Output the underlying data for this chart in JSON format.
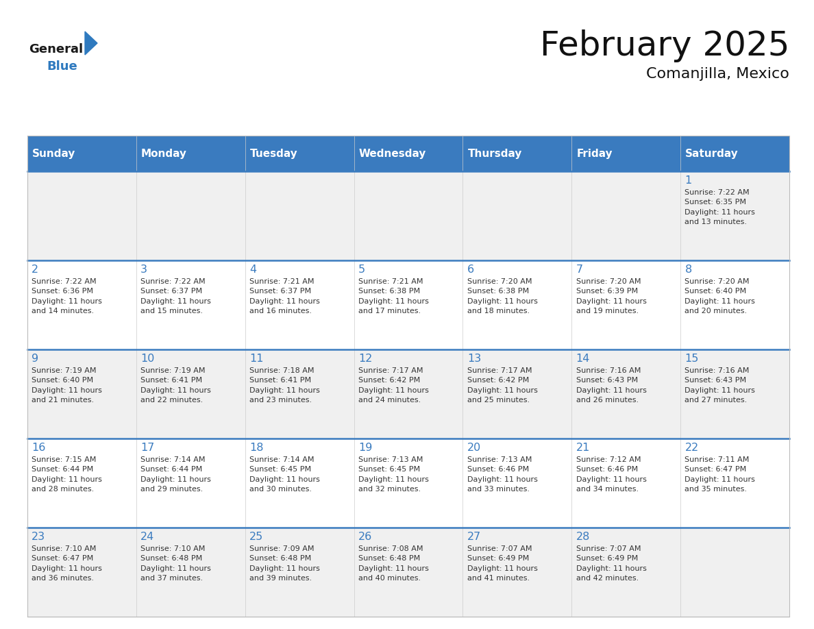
{
  "title": "February 2025",
  "subtitle": "Comanjilla, Mexico",
  "days_of_week": [
    "Sunday",
    "Monday",
    "Tuesday",
    "Wednesday",
    "Thursday",
    "Friday",
    "Saturday"
  ],
  "header_bg": "#3a7bbf",
  "header_text": "#ffffff",
  "cell_bg_even": "#f0f0f0",
  "cell_bg_odd": "#ffffff",
  "divider_color": "#3a7bbf",
  "title_color": "#111111",
  "day_num_color": "#3a7bbf",
  "cell_text_color": "#333333",
  "weeks": [
    [
      {
        "day": null,
        "info": null
      },
      {
        "day": null,
        "info": null
      },
      {
        "day": null,
        "info": null
      },
      {
        "day": null,
        "info": null
      },
      {
        "day": null,
        "info": null
      },
      {
        "day": null,
        "info": null
      },
      {
        "day": 1,
        "info": "Sunrise: 7:22 AM\nSunset: 6:35 PM\nDaylight: 11 hours\nand 13 minutes."
      }
    ],
    [
      {
        "day": 2,
        "info": "Sunrise: 7:22 AM\nSunset: 6:36 PM\nDaylight: 11 hours\nand 14 minutes."
      },
      {
        "day": 3,
        "info": "Sunrise: 7:22 AM\nSunset: 6:37 PM\nDaylight: 11 hours\nand 15 minutes."
      },
      {
        "day": 4,
        "info": "Sunrise: 7:21 AM\nSunset: 6:37 PM\nDaylight: 11 hours\nand 16 minutes."
      },
      {
        "day": 5,
        "info": "Sunrise: 7:21 AM\nSunset: 6:38 PM\nDaylight: 11 hours\nand 17 minutes."
      },
      {
        "day": 6,
        "info": "Sunrise: 7:20 AM\nSunset: 6:38 PM\nDaylight: 11 hours\nand 18 minutes."
      },
      {
        "day": 7,
        "info": "Sunrise: 7:20 AM\nSunset: 6:39 PM\nDaylight: 11 hours\nand 19 minutes."
      },
      {
        "day": 8,
        "info": "Sunrise: 7:20 AM\nSunset: 6:40 PM\nDaylight: 11 hours\nand 20 minutes."
      }
    ],
    [
      {
        "day": 9,
        "info": "Sunrise: 7:19 AM\nSunset: 6:40 PM\nDaylight: 11 hours\nand 21 minutes."
      },
      {
        "day": 10,
        "info": "Sunrise: 7:19 AM\nSunset: 6:41 PM\nDaylight: 11 hours\nand 22 minutes."
      },
      {
        "day": 11,
        "info": "Sunrise: 7:18 AM\nSunset: 6:41 PM\nDaylight: 11 hours\nand 23 minutes."
      },
      {
        "day": 12,
        "info": "Sunrise: 7:17 AM\nSunset: 6:42 PM\nDaylight: 11 hours\nand 24 minutes."
      },
      {
        "day": 13,
        "info": "Sunrise: 7:17 AM\nSunset: 6:42 PM\nDaylight: 11 hours\nand 25 minutes."
      },
      {
        "day": 14,
        "info": "Sunrise: 7:16 AM\nSunset: 6:43 PM\nDaylight: 11 hours\nand 26 minutes."
      },
      {
        "day": 15,
        "info": "Sunrise: 7:16 AM\nSunset: 6:43 PM\nDaylight: 11 hours\nand 27 minutes."
      }
    ],
    [
      {
        "day": 16,
        "info": "Sunrise: 7:15 AM\nSunset: 6:44 PM\nDaylight: 11 hours\nand 28 minutes."
      },
      {
        "day": 17,
        "info": "Sunrise: 7:14 AM\nSunset: 6:44 PM\nDaylight: 11 hours\nand 29 minutes."
      },
      {
        "day": 18,
        "info": "Sunrise: 7:14 AM\nSunset: 6:45 PM\nDaylight: 11 hours\nand 30 minutes."
      },
      {
        "day": 19,
        "info": "Sunrise: 7:13 AM\nSunset: 6:45 PM\nDaylight: 11 hours\nand 32 minutes."
      },
      {
        "day": 20,
        "info": "Sunrise: 7:13 AM\nSunset: 6:46 PM\nDaylight: 11 hours\nand 33 minutes."
      },
      {
        "day": 21,
        "info": "Sunrise: 7:12 AM\nSunset: 6:46 PM\nDaylight: 11 hours\nand 34 minutes."
      },
      {
        "day": 22,
        "info": "Sunrise: 7:11 AM\nSunset: 6:47 PM\nDaylight: 11 hours\nand 35 minutes."
      }
    ],
    [
      {
        "day": 23,
        "info": "Sunrise: 7:10 AM\nSunset: 6:47 PM\nDaylight: 11 hours\nand 36 minutes."
      },
      {
        "day": 24,
        "info": "Sunrise: 7:10 AM\nSunset: 6:48 PM\nDaylight: 11 hours\nand 37 minutes."
      },
      {
        "day": 25,
        "info": "Sunrise: 7:09 AM\nSunset: 6:48 PM\nDaylight: 11 hours\nand 39 minutes."
      },
      {
        "day": 26,
        "info": "Sunrise: 7:08 AM\nSunset: 6:48 PM\nDaylight: 11 hours\nand 40 minutes."
      },
      {
        "day": 27,
        "info": "Sunrise: 7:07 AM\nSunset: 6:49 PM\nDaylight: 11 hours\nand 41 minutes."
      },
      {
        "day": 28,
        "info": "Sunrise: 7:07 AM\nSunset: 6:49 PM\nDaylight: 11 hours\nand 42 minutes."
      },
      {
        "day": null,
        "info": null
      }
    ]
  ]
}
